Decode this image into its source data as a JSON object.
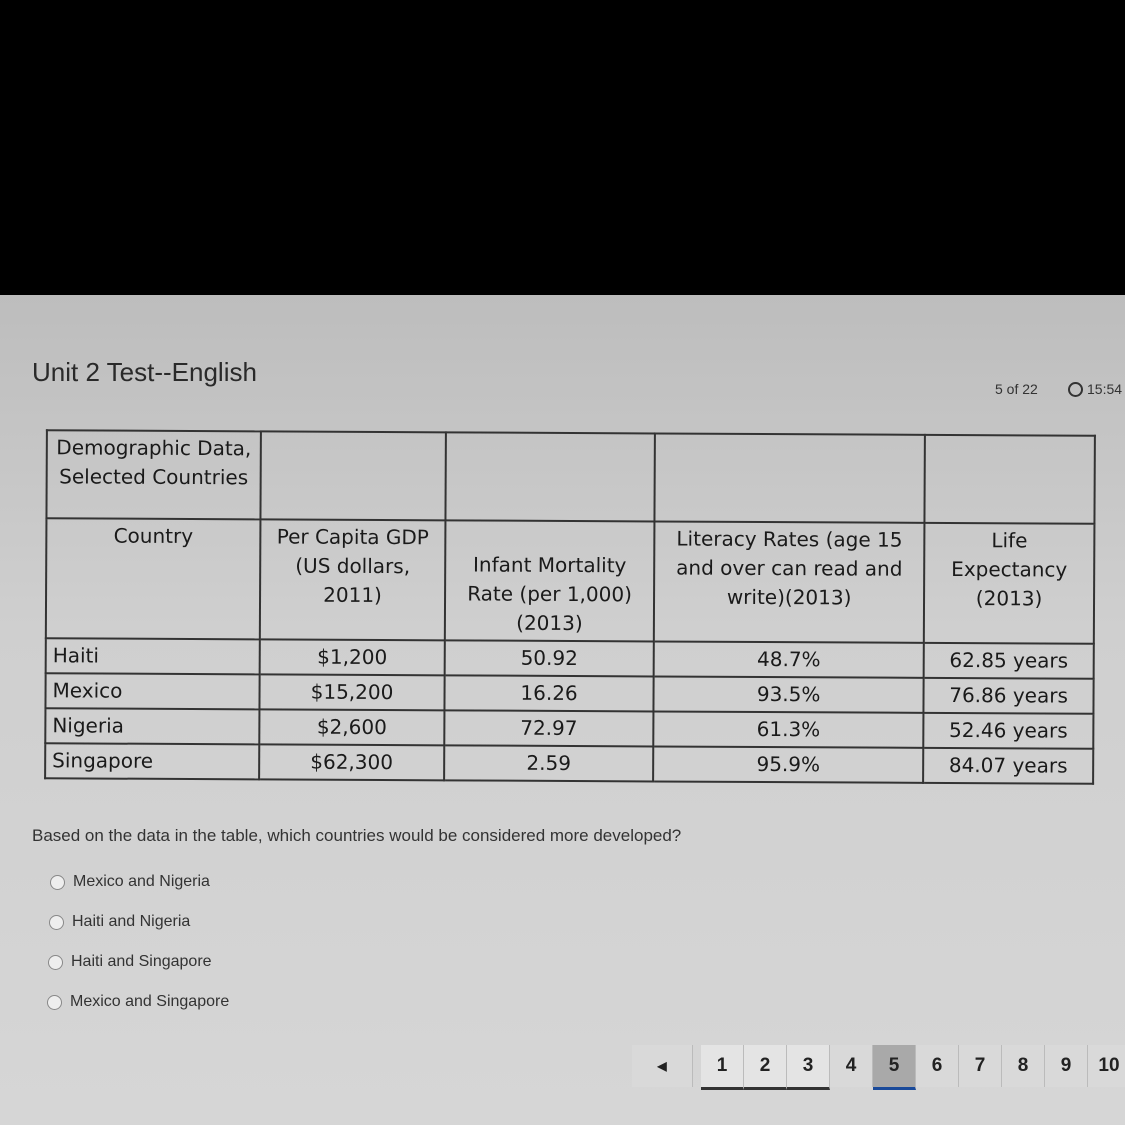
{
  "header": {
    "title": "Unit 2 Test--English",
    "progress": "5 of 22",
    "timer": "15:54"
  },
  "table": {
    "caption": "Demographic Data, Selected Countries",
    "columns": [
      "Country",
      "Per Capita GDP (US dollars, 2011)",
      "Infant Mortality Rate (per 1,000) (2013)",
      "Literacy Rates (age 15 and over can read and write)(2013)",
      "Life Expectancy (2013)"
    ],
    "rows": [
      [
        "Haiti",
        "$1,200",
        "50.92",
        "48.7%",
        "62.85 years"
      ],
      [
        "Mexico",
        "$15,200",
        "16.26",
        "93.5%",
        "76.86 years"
      ],
      [
        "Nigeria",
        "$2,600",
        "72.97",
        "61.3%",
        "52.46 years"
      ],
      [
        "Singapore",
        "$62,300",
        "2.59",
        "95.9%",
        "84.07 years"
      ]
    ]
  },
  "question": "Based on the data in the table, which countries would be considered more developed?",
  "options": [
    "Mexico and Nigeria",
    "Haiti and Nigeria",
    "Haiti and Singapore",
    "Mexico and Singapore"
  ],
  "pager": {
    "prev_icon": "triangle-left",
    "pages": [
      "1",
      "2",
      "3",
      "4",
      "5",
      "6",
      "7",
      "8",
      "9",
      "10"
    ],
    "current": "5"
  },
  "colors": {
    "current_page_underline": "#1a4a9a"
  }
}
